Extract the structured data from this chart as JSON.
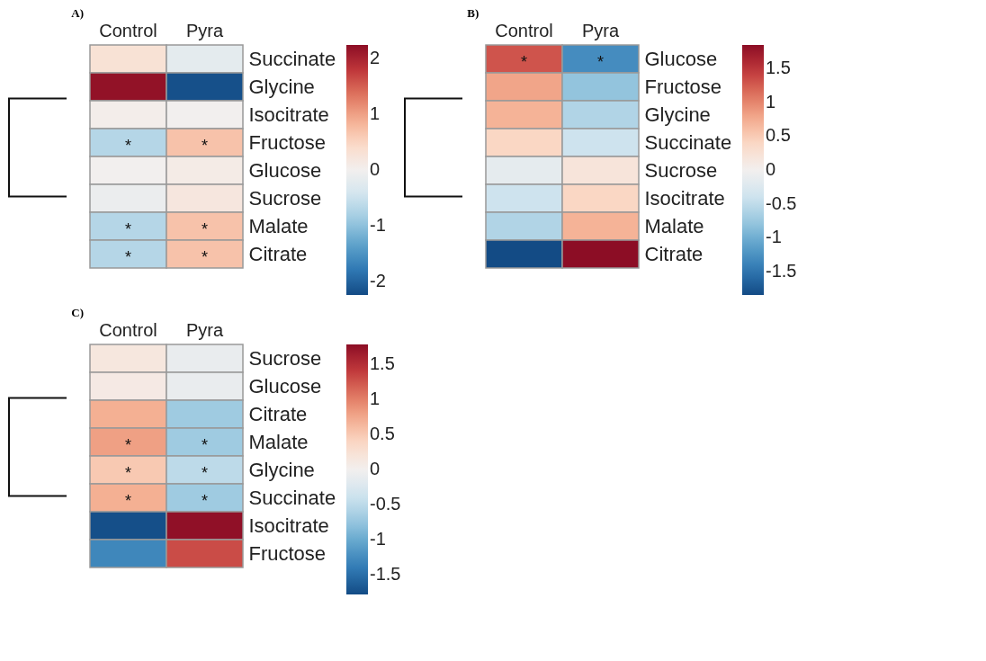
{
  "chart_data": [
    {
      "type": "heatmap",
      "title": "A)",
      "categories": [
        "Control",
        "Pyra"
      ],
      "y_categories": [
        "Succinate",
        "Glycine",
        "Isocitrate",
        "Fructose",
        "Glucose",
        "Sucrose",
        "Malate",
        "Citrate"
      ],
      "cells": [
        [
          0.3,
          -0.2
        ],
        [
          2.2,
          -2.2
        ],
        [
          0.05,
          0
        ],
        [
          -0.7,
          0.7
        ],
        [
          0,
          0.1
        ],
        [
          -0.1,
          0.2
        ],
        [
          -0.7,
          0.7
        ],
        [
          -0.7,
          0.7
        ]
      ],
      "cell_labels": [
        [
          null,
          null
        ],
        [
          null,
          null
        ],
        [
          null,
          null
        ],
        [
          "*",
          "*"
        ],
        [
          null,
          null
        ],
        [
          null,
          null
        ],
        [
          "*",
          "*"
        ],
        [
          "*",
          "*"
        ]
      ],
      "clim": [
        -2.25,
        2.25
      ],
      "cticks": [
        -2,
        -1,
        0,
        1,
        2
      ]
    },
    {
      "type": "heatmap",
      "title": "B)",
      "categories": [
        "Control",
        "Pyra"
      ],
      "y_categories": [
        "Glucose",
        "Fructose",
        "Glycine",
        "Succinate",
        "Sucrose",
        "Isocitrate",
        "Malate",
        "Citrate"
      ],
      "cells": [
        [
          1.3,
          -1.3
        ],
        [
          0.8,
          -0.8
        ],
        [
          0.7,
          -0.6
        ],
        [
          0.4,
          -0.4
        ],
        [
          -0.15,
          0.2
        ],
        [
          -0.4,
          0.4
        ],
        [
          -0.6,
          0.7
        ],
        [
          -1.85,
          1.85
        ]
      ],
      "cell_labels": [
        [
          "*",
          "*"
        ],
        [
          null,
          null
        ],
        [
          null,
          null
        ],
        [
          null,
          null
        ],
        [
          null,
          null
        ],
        [
          null,
          null
        ],
        [
          null,
          null
        ],
        [
          null,
          null
        ]
      ],
      "clim": [
        -1.85,
        1.85
      ],
      "cticks": [
        -1.5,
        -1,
        -0.5,
        0,
        0.5,
        1,
        1.5
      ]
    },
    {
      "type": "heatmap",
      "title": "C)",
      "categories": [
        "Control",
        "Pyra"
      ],
      "y_categories": [
        "Sucrose",
        "Glucose",
        "Citrate",
        "Malate",
        "Glycine",
        "Succinate",
        "Isocitrate",
        "Fructose"
      ],
      "cells": [
        [
          0.15,
          -0.1
        ],
        [
          0.1,
          -0.1
        ],
        [
          0.7,
          -0.7
        ],
        [
          0.8,
          -0.7
        ],
        [
          0.5,
          -0.5
        ],
        [
          0.7,
          -0.7
        ],
        [
          -1.75,
          1.75
        ],
        [
          -1.3,
          1.3
        ]
      ],
      "cell_labels": [
        [
          null,
          null
        ],
        [
          null,
          null
        ],
        [
          null,
          null
        ],
        [
          "*",
          "*"
        ],
        [
          "*",
          "*"
        ],
        [
          "*",
          "*"
        ],
        [
          null,
          null
        ],
        [
          null,
          null
        ]
      ],
      "clim": [
        -1.78,
        1.78
      ],
      "cticks": [
        -1.5,
        -1,
        -0.5,
        0,
        0.5,
        1,
        1.5
      ]
    }
  ]
}
